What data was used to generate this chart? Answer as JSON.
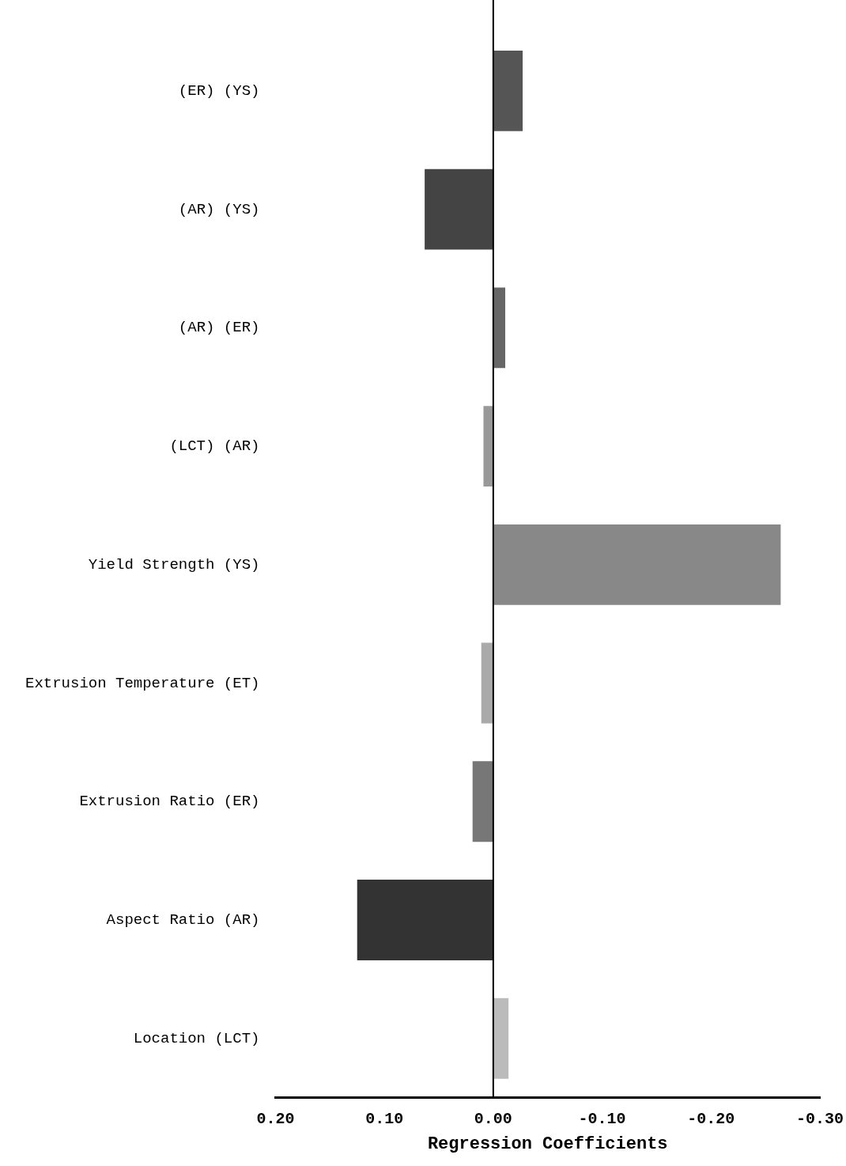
{
  "chart_data": {
    "type": "bar",
    "orientation": "horizontal",
    "xlabel": "Regression Coefficients",
    "categories": [
      "(ER) (YS)",
      "(AR) (YS)",
      "(AR) (ER)",
      "(LCT) (AR)",
      "Yield Strength (YS)",
      "Extrusion Temperature (ET)",
      "Extrusion Ratio (ER)",
      "Aspect Ratio (AR)",
      "Location (LCT)"
    ],
    "values": [
      -0.027,
      0.063,
      -0.011,
      0.009,
      -0.264,
      0.011,
      0.019,
      0.125,
      -0.014
    ],
    "colors": [
      "#555555",
      "#444444",
      "#666666",
      "#999999",
      "#888888",
      "#aaaaaa",
      "#777777",
      "#333333",
      "#bbbbbb"
    ],
    "xlim": [
      0.2,
      -0.3
    ],
    "xticks": [
      {
        "value": 0.2,
        "label": "0.20"
      },
      {
        "value": 0.1,
        "label": "0.10"
      },
      {
        "value": 0,
        "label": "0.00"
      },
      {
        "value": -0.1,
        "label": "-0.10"
      },
      {
        "value": -0.2,
        "label": "-0.20"
      },
      {
        "value": -0.3,
        "label": "-0.30"
      }
    ],
    "ref_lines": [
      {
        "axis": "x",
        "value": 0
      }
    ],
    "grid": false,
    "legend": false
  }
}
